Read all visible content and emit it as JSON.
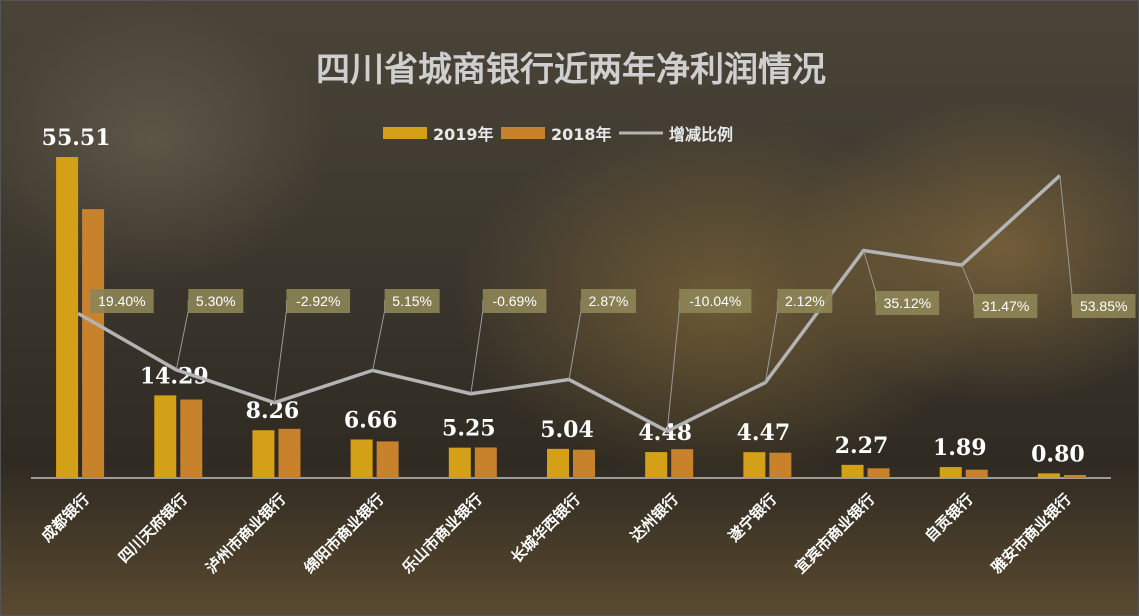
{
  "chart_data": {
    "type": "bar",
    "title": "四川省城商银行近两年净利润情况",
    "categories": [
      "成都银行",
      "四川天府银行",
      "泸州市商业银行",
      "绵阳市商业银行",
      "乐山市商业银行",
      "长城华西银行",
      "达州银行",
      "遂宁银行",
      "宜宾市商业银行",
      "自贡银行",
      "雅安市商业银行"
    ],
    "series": [
      {
        "name": "2019年",
        "color": "#d4a017",
        "values": [
          55.51,
          14.29,
          8.26,
          6.66,
          5.25,
          5.04,
          4.48,
          4.47,
          2.27,
          1.89,
          0.8
        ]
      },
      {
        "name": "2018年",
        "color": "#c8822c",
        "values": [
          46.5,
          13.57,
          8.5,
          6.33,
          5.28,
          4.9,
          4.98,
          4.38,
          1.68,
          1.44,
          0.52
        ]
      }
    ],
    "ratio_series": {
      "name": "增减比例",
      "color": "#b4b4b4",
      "values": [
        19.4,
        5.3,
        -2.92,
        5.15,
        -0.69,
        2.87,
        -10.04,
        2.12,
        35.12,
        31.47,
        53.85
      ],
      "labels": [
        "19.40%",
        "5.30%",
        "-2.92%",
        "5.15%",
        "-0.69%",
        "2.87%",
        "-10.04%",
        "2.12%",
        "35.12%",
        "31.47%",
        "53.85%"
      ]
    },
    "value_labels": [
      "55.51",
      "14.29",
      "8.26",
      "6.66",
      "5.25",
      "5.04",
      "4.48",
      "4.47",
      "2.27",
      "1.89",
      "0.80"
    ],
    "ylim": [
      0,
      58
    ],
    "ratio_ylim": [
      -14,
      63
    ],
    "legend_position": "top-center"
  }
}
